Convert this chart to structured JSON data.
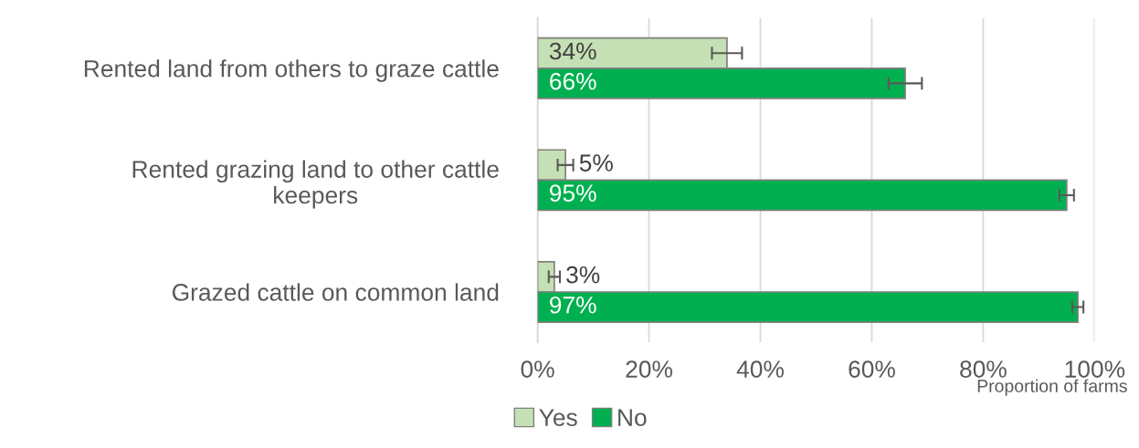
{
  "chart_data": {
    "type": "bar",
    "orientation": "horizontal",
    "categories": [
      "Rented land from others to graze cattle",
      "Rented grazing land to other cattle\nkeepers",
      "Grazed cattle on common land"
    ],
    "series": [
      {
        "name": "Yes",
        "color": "#c5e0b4",
        "values": [
          34,
          5,
          3
        ],
        "errors": [
          2.7,
          1.4,
          1
        ],
        "value_labels": [
          "34%",
          "5%",
          "3%"
        ]
      },
      {
        "name": "No",
        "color": "#00b050",
        "values": [
          66,
          95,
          97
        ],
        "errors": [
          3,
          1.3,
          1
        ],
        "value_labels": [
          "66%",
          "95%",
          "97%"
        ]
      }
    ],
    "xlim": [
      0,
      100
    ],
    "xticks": [
      {
        "value": 0,
        "label": "0%"
      },
      {
        "value": 20,
        "label": "20%"
      },
      {
        "value": 40,
        "label": "40%"
      },
      {
        "value": 60,
        "label": "60%"
      },
      {
        "value": 80,
        "label": "80%"
      },
      {
        "value": 100,
        "label": "100%"
      }
    ],
    "xlabel": "Proportion of farms",
    "grid": "x",
    "legend": "bottom"
  }
}
